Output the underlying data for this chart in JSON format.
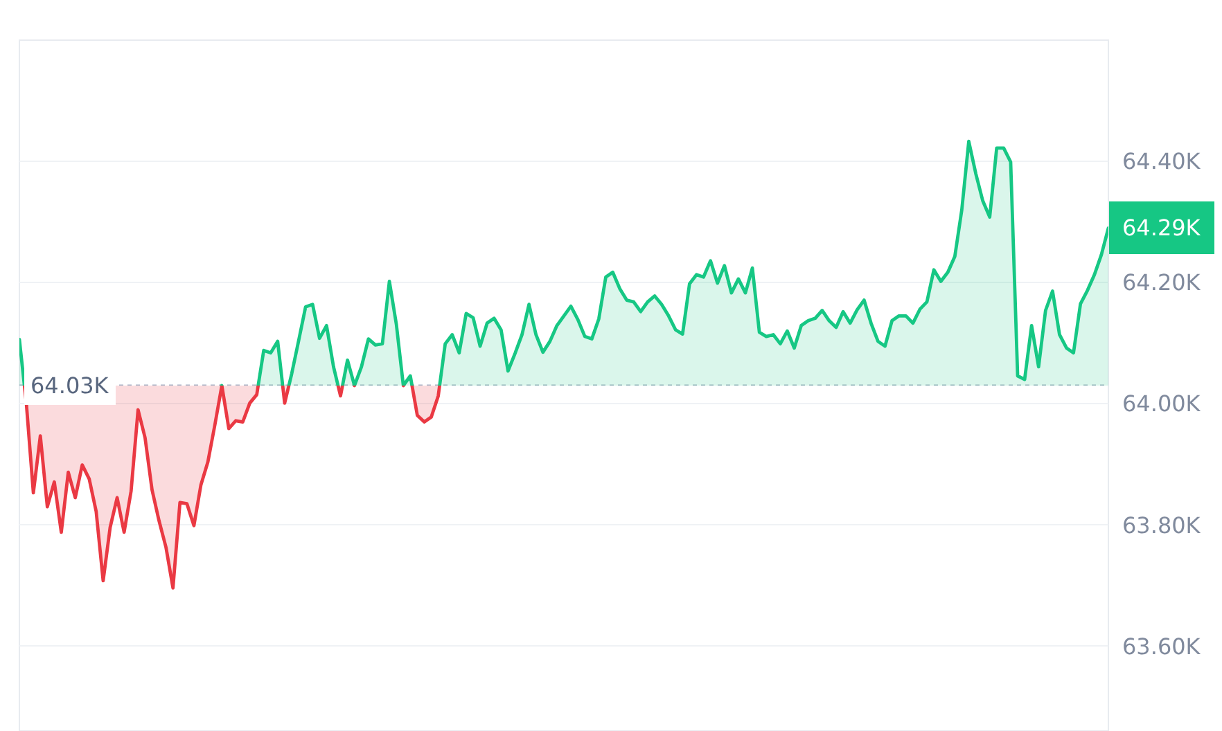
{
  "chart_data": {
    "type": "area",
    "categories": [
      null,
      null,
      null,
      null,
      null,
      null,
      null,
      null,
      null,
      null,
      null,
      null,
      null,
      null,
      null,
      null,
      null,
      null,
      null,
      null,
      null,
      null,
      null,
      null,
      null,
      null,
      null,
      null,
      null,
      null,
      null,
      null,
      null,
      null,
      null,
      null,
      null,
      null,
      null,
      null,
      null,
      null,
      null,
      null,
      null,
      null,
      null,
      null,
      null,
      null,
      null,
      null,
      null,
      null,
      null,
      null,
      null,
      null,
      null,
      null,
      null,
      null,
      null,
      null,
      null,
      null,
      null,
      null,
      null,
      null,
      null,
      null,
      null,
      null,
      null,
      null,
      null,
      null,
      null,
      null,
      null,
      null,
      null,
      null,
      null,
      null,
      null,
      null,
      null,
      null,
      null,
      null,
      null,
      null,
      null,
      null,
      null,
      null,
      null,
      null,
      null,
      null,
      null,
      null,
      null,
      null,
      null,
      null,
      null,
      null,
      null,
      null,
      null,
      null,
      null,
      null,
      null,
      null,
      null,
      null,
      null,
      null,
      null,
      null,
      null,
      null,
      null,
      null,
      null,
      null,
      null,
      null,
      null,
      null,
      null,
      null,
      null,
      null,
      null,
      null,
      null,
      null,
      null,
      null,
      null,
      null,
      null,
      null,
      null,
      null,
      null,
      null,
      null,
      null,
      null,
      null,
      null
    ],
    "series": [
      {
        "color": "#16c784",
        "values": [
          64.106,
          64.0,
          63.853,
          63.947,
          63.83,
          63.871,
          63.788,
          63.887,
          63.845,
          63.899,
          63.876,
          63.822,
          63.708,
          63.796,
          63.845,
          63.788,
          63.856,
          63.99,
          63.944,
          63.858,
          63.807,
          63.763,
          63.696,
          63.837,
          63.835,
          63.799,
          63.866,
          63.904,
          63.965,
          64.03,
          63.959,
          63.972,
          63.97,
          64.001,
          64.015,
          64.088,
          64.084,
          64.103,
          64.001,
          64.049,
          64.104,
          64.16,
          64.164,
          64.108,
          64.129,
          64.061,
          64.013,
          64.072,
          64.03,
          64.061,
          64.107,
          64.097,
          64.099,
          64.202,
          64.131,
          64.03,
          64.046,
          63.981,
          63.97,
          63.978,
          64.013,
          64.099,
          64.114,
          64.084,
          64.149,
          64.142,
          64.095,
          64.133,
          64.141,
          64.122,
          64.054,
          64.083,
          64.114,
          64.164,
          64.114,
          64.085,
          64.103,
          64.129,
          64.145,
          64.161,
          64.139,
          64.111,
          64.107,
          64.14,
          64.209,
          64.217,
          64.19,
          64.171,
          64.168,
          64.152,
          64.168,
          64.178,
          64.164,
          64.145,
          64.122,
          64.115,
          64.198,
          64.213,
          64.209,
          64.236,
          64.199,
          64.228,
          64.183,
          64.206,
          64.183,
          64.224,
          64.118,
          64.111,
          64.114,
          64.099,
          64.12,
          64.092,
          64.129,
          64.137,
          64.141,
          64.154,
          64.137,
          64.126,
          64.152,
          64.133,
          64.155,
          64.171,
          64.133,
          64.103,
          64.095,
          64.137,
          64.145,
          64.145,
          64.133,
          64.156,
          64.168,
          64.221,
          64.202,
          64.217,
          64.243,
          64.32,
          64.433,
          64.38,
          64.335,
          64.308,
          64.422,
          64.422,
          64.399,
          64.046,
          64.04,
          64.129,
          64.061,
          64.154,
          64.186,
          64.114,
          64.092,
          64.084,
          64.165,
          64.187,
          64.213,
          64.246,
          64.29
        ]
      },
      {
        "color": "#ea3943",
        "values": [
          64.106,
          64.0,
          63.853,
          63.947,
          63.83,
          63.871,
          63.788,
          63.887,
          63.845,
          63.899,
          63.876,
          63.822,
          63.708,
          63.796,
          63.845,
          63.788,
          63.856,
          63.99,
          63.944,
          63.858,
          63.807,
          63.763,
          63.696,
          63.837,
          63.835,
          63.799,
          63.866,
          63.904,
          63.965,
          64.03,
          63.959,
          63.972,
          63.97,
          64.001,
          64.015,
          64.088,
          64.084,
          64.103,
          64.001,
          64.049,
          64.104,
          64.16,
          64.164,
          64.108,
          64.129,
          64.061,
          64.013,
          64.072,
          64.03,
          64.061,
          64.107,
          64.097,
          64.099,
          64.202,
          64.131,
          64.03,
          64.046,
          63.981,
          63.97,
          63.978,
          64.013,
          64.099,
          64.114,
          64.084,
          64.149,
          64.142,
          64.095,
          64.133,
          64.141,
          64.122,
          64.054,
          64.083,
          64.114,
          64.164,
          64.114,
          64.085,
          64.103,
          64.129,
          64.145,
          64.161,
          64.139,
          64.111,
          64.107,
          64.14,
          64.209,
          64.217,
          64.19,
          64.171,
          64.168,
          64.152,
          64.168,
          64.178,
          64.164,
          64.145,
          64.122,
          64.115,
          64.198,
          64.213,
          64.209,
          64.236,
          64.199,
          64.228,
          64.183,
          64.206,
          64.183,
          64.224,
          64.118,
          64.111,
          64.114,
          64.099,
          64.12,
          64.092,
          64.129,
          64.137,
          64.141,
          64.154,
          64.137,
          64.126,
          64.152,
          64.133,
          64.155,
          64.171,
          64.133,
          64.103,
          64.095,
          64.137,
          64.145,
          64.145,
          64.133,
          64.156,
          64.168,
          64.221,
          64.202,
          64.217,
          64.243,
          64.32,
          64.433,
          64.38,
          64.335,
          64.308,
          64.422,
          64.422,
          64.399,
          64.046,
          64.04,
          64.129,
          64.061,
          64.154,
          64.186,
          64.114,
          64.092,
          64.084,
          64.165,
          64.187,
          64.213,
          64.246,
          64.29
        ]
      }
    ],
    "ylim": [
      63.46,
      64.6
    ],
    "yticks": [
      {
        "value": 63.6,
        "label": "63.60K"
      },
      {
        "value": 63.8,
        "label": "63.80K"
      },
      {
        "value": 64.0,
        "label": "64.00K"
      },
      {
        "value": 64.2,
        "label": "64.20K"
      },
      {
        "value": 64.4,
        "label": "64.40K"
      }
    ],
    "grid": "y",
    "tick_labels": "y",
    "ref_lines": [
      {
        "axis": "y",
        "value": 64.03,
        "label": "64.03K",
        "color": "#a6b0c3",
        "line_style": "dotted"
      }
    ],
    "annotations": [
      "64.29K"
    ]
  }
}
